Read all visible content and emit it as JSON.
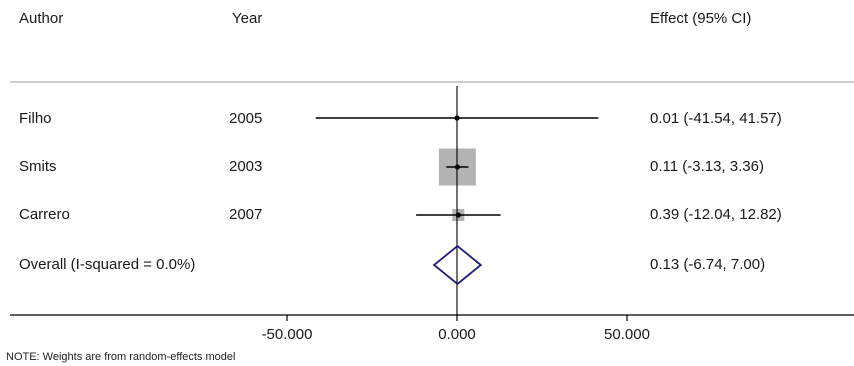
{
  "headers": {
    "author": "Author",
    "year": "Year",
    "effect": "Effect (95% CI)"
  },
  "note": "NOTE: Weights are from random-effects model",
  "colors": {
    "line": "#000000",
    "weight_box": "#b3b3b3",
    "diamond": "#1f1f7a",
    "rule": "#bdbdbd"
  },
  "chart_data": {
    "type": "forest",
    "xlim": [
      -60,
      107
    ],
    "null_line": 0,
    "xticks": [
      {
        "value": -50,
        "label": "-50.000"
      },
      {
        "value": 0,
        "label": "0.000"
      },
      {
        "value": 50,
        "label": "50.000"
      }
    ],
    "studies": [
      {
        "author": "Filho",
        "year": "2005",
        "effect": 0.01,
        "lower": -41.54,
        "upper": 41.57,
        "weight": 0.5,
        "ci_text": "0.01 (-41.54, 41.57)"
      },
      {
        "author": "Smits",
        "year": "2003",
        "effect": 0.11,
        "lower": -3.13,
        "upper": 3.36,
        "weight": 90.0,
        "ci_text": "0.11 (-3.13, 3.36)"
      },
      {
        "author": "Carrero",
        "year": "2007",
        "effect": 0.39,
        "lower": -12.04,
        "upper": 12.82,
        "weight": 9.5,
        "ci_text": "0.39 (-12.04, 12.82)"
      }
    ],
    "overall": {
      "label": "Overall  (I-squared = 0.0%)",
      "effect": 0.13,
      "lower": -6.74,
      "upper": 7.0,
      "ci_text": "0.13 (-6.74, 7.00)"
    }
  }
}
